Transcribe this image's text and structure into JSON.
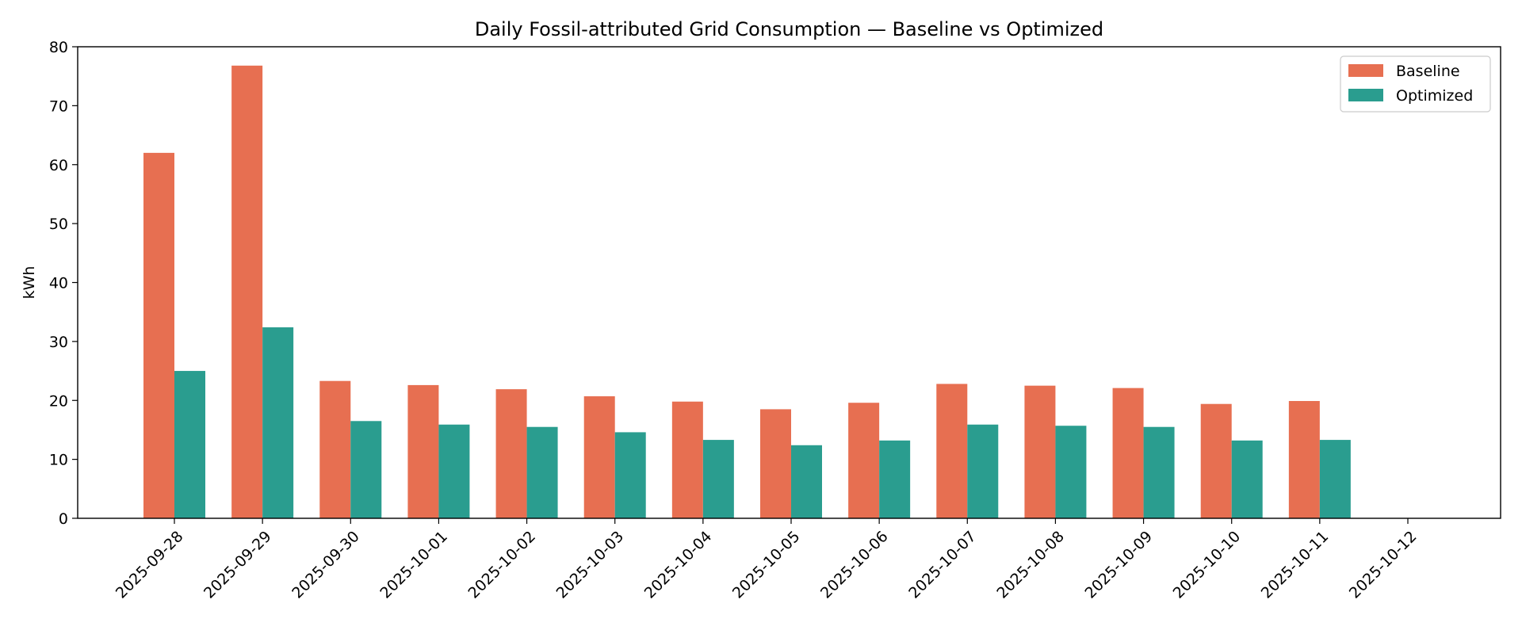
{
  "chart_data": {
    "type": "bar",
    "title": "Daily Fossil-attributed Grid Consumption — Baseline vs Optimized",
    "xlabel": "",
    "ylabel": "kWh",
    "ylim": [
      0,
      80
    ],
    "yticks": [
      0,
      10,
      20,
      30,
      40,
      50,
      60,
      70,
      80
    ],
    "grid": false,
    "legend_position": "top-right",
    "categories": [
      "2025-09-28",
      "2025-09-29",
      "2025-09-30",
      "2025-10-01",
      "2025-10-02",
      "2025-10-03",
      "2025-10-04",
      "2025-10-05",
      "2025-10-06",
      "2025-10-07",
      "2025-10-08",
      "2025-10-09",
      "2025-10-10",
      "2025-10-11",
      "2025-10-12"
    ],
    "series": [
      {
        "name": "Baseline",
        "color": "#e76f51",
        "values": [
          62.0,
          76.8,
          23.3,
          22.6,
          21.9,
          20.7,
          19.8,
          18.5,
          19.6,
          22.8,
          22.5,
          22.1,
          19.4,
          19.9,
          0
        ]
      },
      {
        "name": "Optimized",
        "color": "#2a9d8f",
        "values": [
          25.0,
          32.4,
          16.5,
          15.9,
          15.5,
          14.6,
          13.3,
          12.4,
          13.2,
          15.9,
          15.7,
          15.5,
          13.2,
          13.3,
          0
        ]
      }
    ]
  }
}
